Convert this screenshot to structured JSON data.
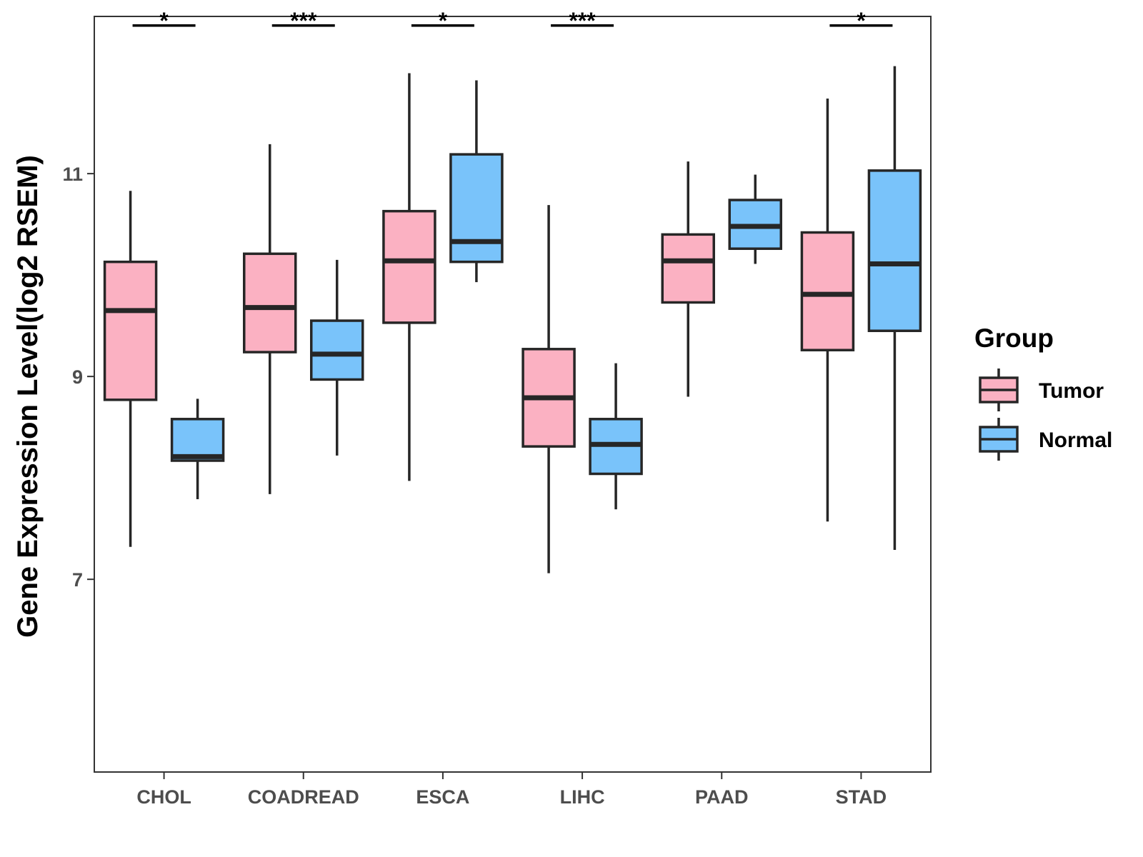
{
  "chart_data": {
    "type": "boxplot",
    "title": "",
    "xlabel": "",
    "ylabel": "Gene Expression Level(log2 RSEM)",
    "ylim": [
      5.1,
      12.55
    ],
    "y_ticks": [
      7,
      9,
      11
    ],
    "categories": [
      "CHOL",
      "COADREAD",
      "ESCA",
      "LIHC",
      "PAAD",
      "STAD"
    ],
    "legend_title": "Group",
    "legend_position": "right",
    "series": [
      {
        "name": "Tumor",
        "color": "#FBB1C2",
        "boxes": [
          {
            "min": 7.32,
            "q1": 8.77,
            "median": 9.65,
            "q3": 10.13,
            "max": 10.83
          },
          {
            "min": 7.84,
            "q1": 9.24,
            "median": 9.68,
            "q3": 10.21,
            "max": 11.29
          },
          {
            "min": 7.97,
            "q1": 9.53,
            "median": 10.14,
            "q3": 10.63,
            "max": 11.99
          },
          {
            "min": 7.06,
            "q1": 8.31,
            "median": 8.79,
            "q3": 9.27,
            "max": 10.69
          },
          {
            "min": 8.8,
            "q1": 9.73,
            "median": 10.14,
            "q3": 10.4,
            "max": 11.12
          },
          {
            "min": 7.57,
            "q1": 9.26,
            "median": 9.81,
            "q3": 10.42,
            "max": 11.74
          }
        ]
      },
      {
        "name": "Normal",
        "color": "#79C3FA",
        "boxes": [
          {
            "min": 7.79,
            "q1": 8.17,
            "median": 8.21,
            "q3": 8.58,
            "max": 8.78
          },
          {
            "min": 8.22,
            "q1": 8.97,
            "median": 9.22,
            "q3": 9.55,
            "max": 10.15
          },
          {
            "min": 9.93,
            "q1": 10.13,
            "median": 10.33,
            "q3": 11.19,
            "max": 11.92
          },
          {
            "min": 7.69,
            "q1": 8.04,
            "median": 8.33,
            "q3": 8.58,
            "max": 9.13
          },
          {
            "min": 10.11,
            "q1": 10.26,
            "median": 10.48,
            "q3": 10.74,
            "max": 10.99
          },
          {
            "min": 7.29,
            "q1": 9.45,
            "median": 10.11,
            "q3": 11.03,
            "max": 12.06
          }
        ]
      }
    ],
    "significance": [
      {
        "category": "CHOL",
        "label": "*"
      },
      {
        "category": "COADREAD",
        "label": "***"
      },
      {
        "category": "ESCA",
        "label": "*"
      },
      {
        "category": "LIHC",
        "label": "***"
      },
      {
        "category": "PAAD",
        "label": ""
      },
      {
        "category": "STAD",
        "label": "*"
      }
    ],
    "significance_level": 12.46,
    "grid": false
  }
}
